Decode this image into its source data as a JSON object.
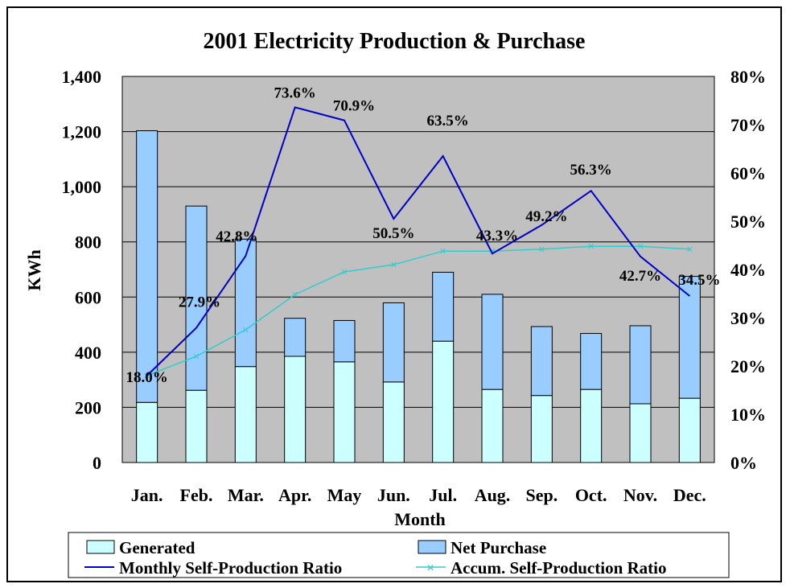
{
  "colors": {
    "plot_bg": "#c0c0c0",
    "generated": "#ccffff",
    "net_purchase": "#99ccff",
    "monthly_line": "#0000cc",
    "accum_line": "#33cccc"
  },
  "chart_data": {
    "type": "bar",
    "stacked": true,
    "title": "2001 Electricity Production & Purchase",
    "xlabel": "Month",
    "ylabel": "KWh",
    "ylim": [
      0,
      1400
    ],
    "y_ticks": [
      "0",
      "200",
      "400",
      "600",
      "800",
      "1,000",
      "1,200",
      "1,400"
    ],
    "y2lim": [
      0,
      80
    ],
    "y2_ticks": [
      "0%",
      "10%",
      "20%",
      "30%",
      "40%",
      "50%",
      "60%",
      "70%",
      "80%"
    ],
    "grid": true,
    "legend_position": "bottom",
    "categories": [
      "Jan.",
      "Feb.",
      "Mar.",
      "Apr.",
      "May",
      "Jun.",
      "Jul.",
      "Aug.",
      "Sep.",
      "Oct.",
      "Nov.",
      "Dec."
    ],
    "series": [
      {
        "name": "Generated",
        "type": "bar",
        "axis": "left",
        "values": [
          218,
          262,
          348,
          385,
          365,
          292,
          440,
          265,
          243,
          265,
          213,
          233
        ]
      },
      {
        "name": "Net Purchase",
        "type": "bar",
        "axis": "left",
        "values": [
          985,
          668,
          462,
          138,
          150,
          287,
          250,
          345,
          250,
          203,
          283,
          442
        ]
      },
      {
        "name": "Monthly Self-Production Ratio",
        "type": "line",
        "axis": "right",
        "values": [
          18.0,
          27.9,
          42.8,
          73.6,
          70.9,
          50.5,
          63.5,
          43.3,
          49.2,
          56.3,
          42.7,
          34.5
        ],
        "labels": [
          "18.0%",
          "27.9%",
          "42.8%",
          "73.6%",
          "70.9%",
          "50.5%",
          "63.5%",
          "43.3%",
          "49.2%",
          "56.3%",
          "42.7%",
          "34.5%"
        ]
      },
      {
        "name": "Accum. Self-Production Ratio",
        "type": "line",
        "axis": "right",
        "values": [
          18.0,
          22.0,
          27.5,
          34.8,
          39.5,
          41.0,
          43.8,
          43.8,
          44.2,
          44.8,
          44.8,
          44.2
        ]
      }
    ]
  }
}
